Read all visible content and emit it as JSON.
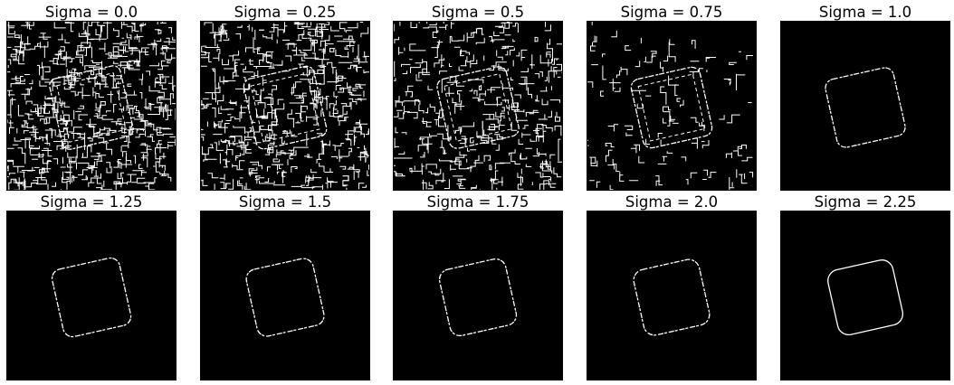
{
  "colors": {
    "background": "#ffffff",
    "image_background": "#000000",
    "edges": "#ffffff"
  },
  "panels": [
    {
      "title": "Sigma = 0.0",
      "sigma": 0.0,
      "noise_density": 1.0
    },
    {
      "title": "Sigma = 0.25",
      "sigma": 0.25,
      "noise_density": 0.85
    },
    {
      "title": "Sigma = 0.5",
      "sigma": 0.5,
      "noise_density": 0.6
    },
    {
      "title": "Sigma = 0.75",
      "sigma": 0.75,
      "noise_density": 0.2
    },
    {
      "title": "Sigma = 1.0",
      "sigma": 1.0,
      "noise_density": 0.0
    },
    {
      "title": "Sigma = 1.25",
      "sigma": 1.25,
      "noise_density": 0.0
    },
    {
      "title": "Sigma = 1.5",
      "sigma": 1.5,
      "noise_density": 0.0
    },
    {
      "title": "Sigma = 1.75",
      "sigma": 1.75,
      "noise_density": 0.0
    },
    {
      "title": "Sigma = 2.0",
      "sigma": 2.0,
      "noise_density": 0.0
    },
    {
      "title": "Sigma = 2.25",
      "sigma": 2.25,
      "noise_density": 0.0
    }
  ]
}
